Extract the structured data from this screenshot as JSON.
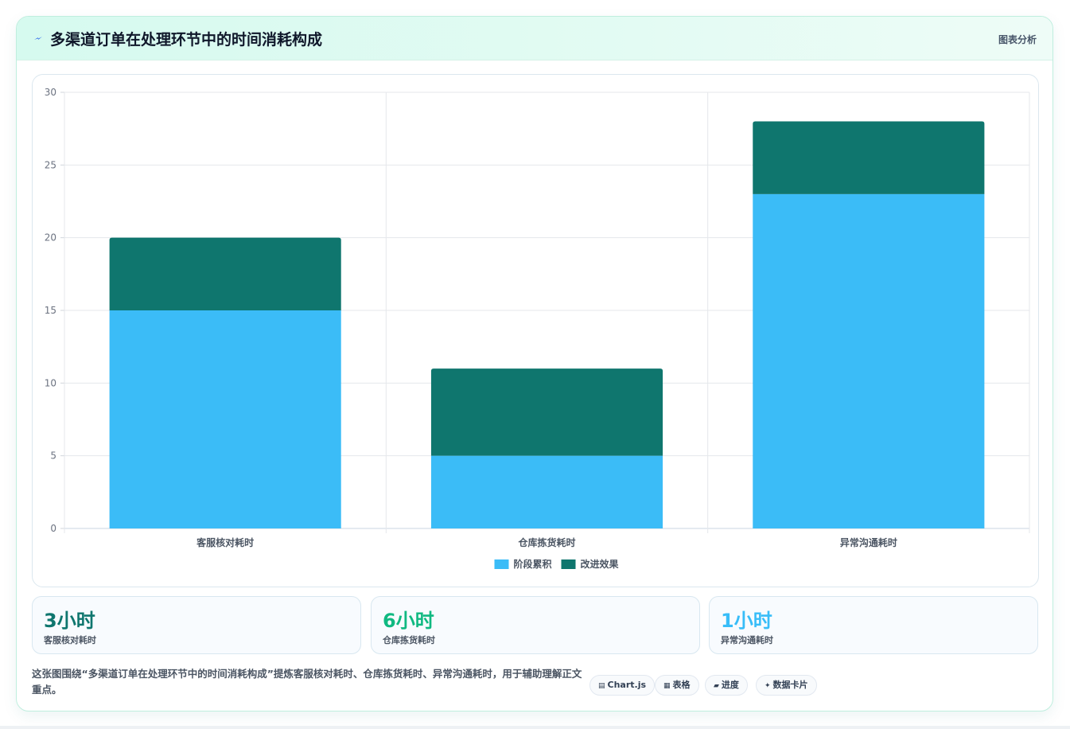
{
  "header": {
    "icon": "lightning-icon",
    "title": "多渠道订单在处理环节中的时间消耗构成",
    "tag": "图表分析"
  },
  "chart_data": {
    "type": "bar",
    "stacked": true,
    "categories": [
      "客服核对耗时",
      "仓库拣货耗时",
      "异常沟通耗时"
    ],
    "series": [
      {
        "name": "阶段累积",
        "values": [
          15,
          5,
          23
        ],
        "color": "#3bbcf7"
      },
      {
        "name": "改进效果",
        "values": [
          5,
          6,
          5
        ],
        "color": "#0f766e"
      }
    ],
    "title": "",
    "xlabel": "",
    "ylabel": "",
    "ylim": [
      0,
      30
    ],
    "yticks": [
      0,
      5,
      10,
      15,
      20,
      25,
      30
    ],
    "grid": true,
    "legend": "bottom-center"
  },
  "stats": [
    {
      "value": "3小时",
      "label": "客服核对耗时",
      "color": "#0f766e"
    },
    {
      "value": "6小时",
      "label": "仓库拣货耗时",
      "color": "#10b981"
    },
    {
      "value": "1小时",
      "label": "异常沟通耗时",
      "color": "#38bdf8"
    }
  ],
  "description": "这张图围绕“多渠道订单在处理环节中的时间消耗构成”提炼客服核对耗时、仓库拣货耗时、异常沟通耗时，用于辅助理解正文重点。",
  "tags": [
    {
      "icon": "chart-icon",
      "glyph": "▤",
      "label": "Chart.js"
    },
    {
      "icon": "table-icon",
      "glyph": "▦",
      "label": "表格"
    },
    {
      "icon": "progress-icon",
      "glyph": "▰",
      "label": "进度"
    },
    {
      "icon": "card-icon",
      "glyph": "✦",
      "label": "数据卡片"
    }
  ]
}
